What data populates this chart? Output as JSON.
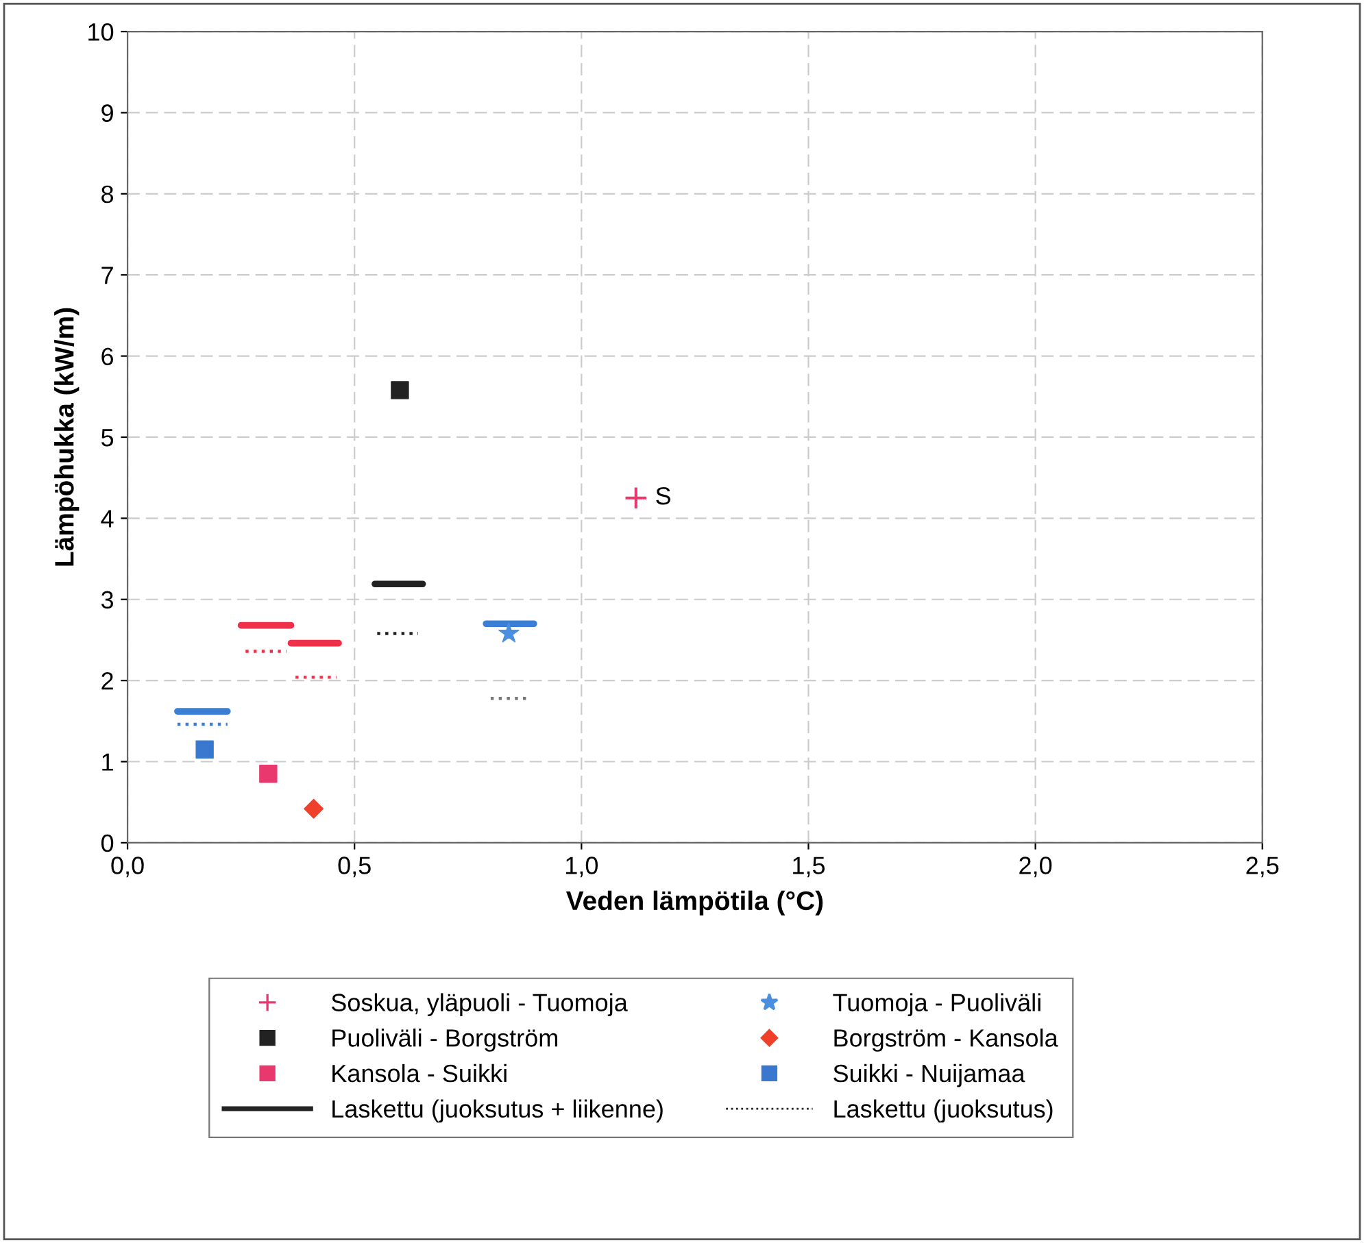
{
  "chart_data": {
    "type": "scatter",
    "xlabel": "Veden lämpötila (°C)",
    "ylabel": "Lämpöhukka (kW/m)",
    "xlim": [
      0,
      2.5
    ],
    "xticks": [
      {
        "value": 0,
        "label": "0,0"
      },
      {
        "value": 0.5,
        "label": "0,5"
      },
      {
        "value": 1.0,
        "label": "1,0"
      },
      {
        "value": 1.5,
        "label": "1,5"
      },
      {
        "value": 2.0,
        "label": "2,0"
      },
      {
        "value": 2.5,
        "label": "2,5"
      }
    ],
    "ylim": [
      0,
      10
    ],
    "yticks": [
      0,
      1,
      2,
      3,
      4,
      5,
      6,
      7,
      8,
      9,
      10
    ],
    "grid": true,
    "legend": "bottom",
    "annotations": [
      {
        "text": "S",
        "x": 1.12,
        "y": 4.25
      }
    ],
    "series": [
      {
        "name": "Soskua, yläpuoli - Tuomoja",
        "color": "#e8386e",
        "marker": "cross",
        "x": [
          1.12
        ],
        "values": [
          4.25
        ]
      },
      {
        "name": "Puoliväli - Borgström",
        "color": "#222222",
        "marker": "square",
        "x": [
          0.6
        ],
        "values": [
          5.58
        ]
      },
      {
        "name": "Kansola - Suikki",
        "color": "#e8386e",
        "marker": "square",
        "x": [
          0.31
        ],
        "values": [
          0.85
        ]
      },
      {
        "name": "Laskettu (juoksutus + liikenne)",
        "type": "line",
        "line_style": "solid",
        "color": "#222222",
        "x": [
          0.545,
          0.65
        ],
        "values": [
          3.19,
          3.19
        ]
      },
      {
        "name": "Tuomoja - Puoliväli",
        "color": "#4a8fe0",
        "marker": "star",
        "x": [
          0.84
        ],
        "values": [
          2.58
        ]
      },
      {
        "name": "Borgström - Kansola",
        "color": "#f0402a",
        "marker": "diamond",
        "x": [
          0.41
        ],
        "values": [
          0.42
        ]
      },
      {
        "name": "Suikki - Nuijamaa",
        "color": "#3a78d0",
        "marker": "square",
        "x": [
          0.17
        ],
        "values": [
          1.15
        ]
      },
      {
        "name": "Laskettu (juoksutus)",
        "type": "line",
        "line_style": "dotted",
        "color": "#222222",
        "x": [
          0.55,
          0.64
        ],
        "values": [
          2.58,
          2.58
        ]
      },
      {
        "type": "line",
        "line_style": "solid",
        "color": "#3a7fd5",
        "x": [
          0.11,
          0.22
        ],
        "values": [
          1.62,
          1.62
        ]
      },
      {
        "type": "line",
        "line_style": "solid",
        "color": "#f0304a",
        "x": [
          0.25,
          0.36
        ],
        "values": [
          2.68,
          2.68
        ]
      },
      {
        "type": "line",
        "line_style": "solid",
        "color": "#f0304a",
        "x": [
          0.36,
          0.465
        ],
        "values": [
          2.46,
          2.46
        ]
      },
      {
        "type": "line",
        "line_style": "solid",
        "color": "#3a7fd5",
        "x": [
          0.79,
          0.895
        ],
        "values": [
          2.7,
          2.7
        ]
      },
      {
        "type": "line",
        "line_style": "dotted",
        "color": "#3a7fd5",
        "x": [
          0.11,
          0.22
        ],
        "values": [
          1.46,
          1.46
        ]
      },
      {
        "type": "line",
        "line_style": "dotted",
        "color": "#f0304a",
        "x": [
          0.26,
          0.35
        ],
        "values": [
          2.36,
          2.36
        ]
      },
      {
        "type": "line",
        "line_style": "dotted",
        "color": "#f0304a",
        "x": [
          0.37,
          0.46
        ],
        "values": [
          2.04,
          2.04
        ]
      },
      {
        "type": "line",
        "line_style": "dotted",
        "color": "#777777",
        "x": [
          0.8,
          0.88
        ],
        "values": [
          1.78,
          1.78
        ]
      }
    ]
  }
}
